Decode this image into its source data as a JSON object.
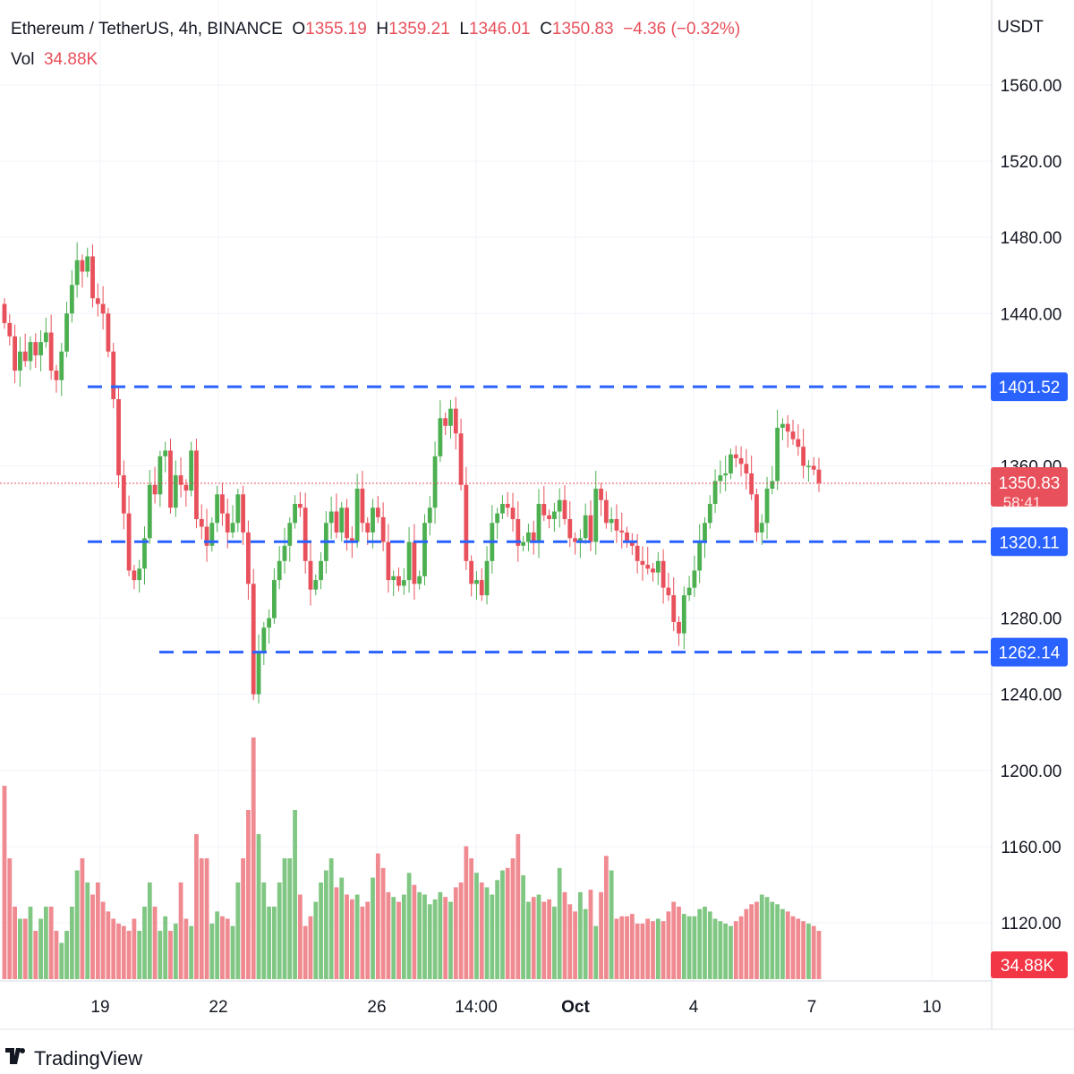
{
  "header": {
    "symbol": "Ethereum / TetherUS, 4h, BINANCE",
    "open_label": "O",
    "open": "1355.19",
    "high_label": "H",
    "high": "1359.21",
    "low_label": "L",
    "low": "1346.01",
    "close_label": "C",
    "close": "1350.83",
    "change": "−4.36 (−0.32%)",
    "vol_label": "Vol",
    "vol": "34.88K"
  },
  "brand": {
    "name": "TradingView"
  },
  "colors": {
    "up": "#4caf50",
    "down": "#e8505b",
    "level": "#2962ff",
    "grid": "#f0f3fa"
  },
  "chart_data": {
    "type": "candlestick",
    "currency": "USDT",
    "y_ticks": [
      "1560.00",
      "1520.00",
      "1480.00",
      "1440.00",
      "1360.00",
      "1280.00",
      "1240.00",
      "1200.00",
      "1160.00",
      "1120.00"
    ],
    "x_ticks": [
      "19",
      "22",
      "26",
      "14:00",
      "Oct",
      "4",
      "7",
      "10"
    ],
    "levels": [
      {
        "label": "1401.52",
        "value": 1401.52
      },
      {
        "label": "1320.11",
        "value": 1320.11
      },
      {
        "label": "1262.14",
        "value": 1262.14
      }
    ],
    "last_price": {
      "label": "1350.83",
      "value": 1350.83,
      "countdown": "58:41"
    },
    "last_volume": "34.88K",
    "candles_close": [
      1435,
      1428,
      1410,
      1420,
      1415,
      1425,
      1418,
      1425,
      1430,
      1410,
      1405,
      1420,
      1440,
      1455,
      1468,
      1462,
      1470,
      1448,
      1445,
      1440,
      1420,
      1395,
      1355,
      1335,
      1305,
      1300,
      1306,
      1322,
      1350,
      1345,
      1365,
      1368,
      1338,
      1355,
      1350,
      1347,
      1368,
      1332,
      1328,
      1318,
      1330,
      1345,
      1335,
      1325,
      1330,
      1345,
      1325,
      1298,
      1240,
      1262,
      1275,
      1280,
      1300,
      1310,
      1318,
      1330,
      1340,
      1338,
      1310,
      1295,
      1300,
      1310,
      1330,
      1336,
      1325,
      1338,
      1322,
      1320,
      1348,
      1330,
      1325,
      1338,
      1333,
      1320,
      1300,
      1302,
      1297,
      1300,
      1320,
      1298,
      1302,
      1330,
      1338,
      1365,
      1385,
      1381,
      1390,
      1377,
      1350,
      1310,
      1298,
      1300,
      1292,
      1310,
      1330,
      1335,
      1340,
      1338,
      1332,
      1318,
      1320,
      1325,
      1320,
      1340,
      1334,
      1332,
      1336,
      1342,
      1332,
      1322,
      1320,
      1322,
      1334,
      1320,
      1348,
      1342,
      1330,
      1332,
      1326,
      1325,
      1320,
      1318,
      1310,
      1308,
      1306,
      1304,
      1310,
      1296,
      1292,
      1278,
      1272,
      1292,
      1296,
      1305,
      1320,
      1330,
      1340,
      1352,
      1355,
      1356,
      1366,
      1364,
      1361,
      1356,
      1345,
      1325,
      1330,
      1348,
      1352,
      1380,
      1382,
      1378,
      1374,
      1370,
      1360,
      1360,
      1358,
      1351
    ],
    "volumes": [
      8,
      5,
      3,
      2.5,
      2.5,
      3,
      2,
      2.5,
      3,
      3,
      2,
      1.5,
      2,
      3,
      4.5,
      5,
      4,
      3.5,
      4,
      3.2,
      2.8,
      2.5,
      2.3,
      2.2,
      2,
      2.5,
      2,
      3,
      4,
      3,
      2,
      2.6,
      2,
      2.3,
      4,
      2.5,
      2.2,
      6,
      5,
      5,
      2.3,
      2.8,
      2.6,
      2.5,
      2.2,
      4,
      5,
      7,
      10,
      6,
      4,
      3,
      3,
      4,
      5,
      5,
      7,
      3.5,
      2.2,
      2.6,
      3.2,
      4,
      4.5,
      5,
      3.8,
      4.2,
      3.5,
      3.3,
      3.5,
      3,
      3.2,
      4.2,
      5.2,
      4.6,
      3.6,
      3.4,
      3.2,
      3.5,
      4.4,
      3.9,
      3.6,
      3.5,
      3.1,
      3.3,
      3.6,
      3.4,
      3.2,
      3.8,
      4,
      5.5,
      5,
      4.4,
      4,
      3.8,
      3.5,
      4.1,
      4.5,
      4.6,
      5,
      6,
      4.3,
      3.2,
      3.4,
      3.5,
      3.2,
      3.3,
      3,
      4.6,
      3.6,
      3.1,
      2.8,
      3.6,
      2.9,
      3.7,
      2.2,
      3.6,
      5.1,
      4.5,
      2.5,
      2.6,
      2.6,
      2.7,
      2.3,
      2.3,
      2.5,
      2.4,
      2.5,
      2.4,
      2.8,
      3.2,
      3,
      2.7,
      2.6,
      2.6,
      2.9,
      3,
      2.8,
      2.5,
      2.4,
      2.3,
      2.2,
      2.4,
      2.6,
      2.9,
      3.1,
      3.2,
      3.5,
      3.4,
      3.2,
      3.1,
      2.9,
      2.8,
      2.6,
      2.5,
      2.4,
      2.3,
      2.2,
      2
    ]
  }
}
